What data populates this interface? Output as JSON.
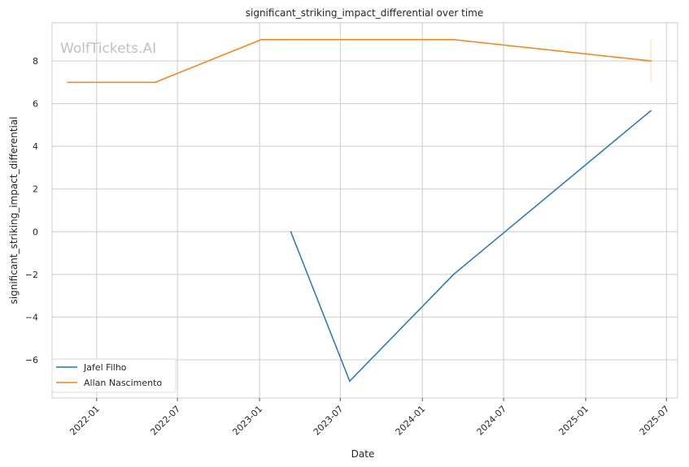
{
  "chart_data": {
    "type": "line",
    "title": "significant_striking_impact_differential over time",
    "xlabel": "Date",
    "ylabel": "significant_striking_impact_differential",
    "watermark": "WolfTickets.AI",
    "xlim": [
      "2021-09-23",
      "2025-07-26"
    ],
    "ylim": [
      -7.79,
      9.79
    ],
    "xticks": [
      "2022-01",
      "2022-07",
      "2023-01",
      "2023-07",
      "2024-01",
      "2024-07",
      "2025-01",
      "2025-07"
    ],
    "yticks": [
      -6,
      -4,
      -2,
      0,
      2,
      4,
      6,
      8
    ],
    "grid": true,
    "legend_position": "bottom-left",
    "series": [
      {
        "name": "Jafel Filho",
        "color": "#1f77b4",
        "x": [
          "2023-03-12",
          "2023-07-22",
          "2024-03-11",
          "2025-05-27"
        ],
        "y": [
          0,
          -7,
          -2,
          5.67
        ]
      },
      {
        "name": "Allan Nascimento",
        "color": "#ff7f0e",
        "x": [
          "2021-10-28",
          "2022-05-12",
          "2023-01-05",
          "2024-03-11",
          "2025-05-27"
        ],
        "y": [
          7,
          7,
          9,
          9,
          8
        ],
        "error_bar": {
          "x": "2025-05-27",
          "low": 7,
          "high": 9
        }
      }
    ]
  }
}
